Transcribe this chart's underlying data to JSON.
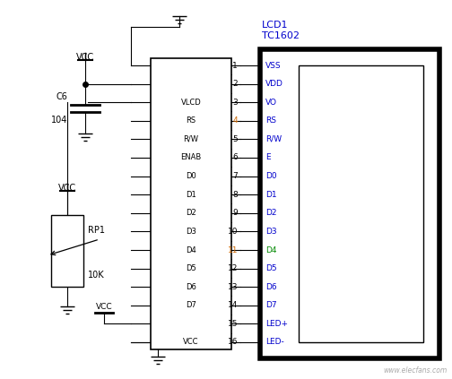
{
  "fig_width": 5.04,
  "fig_height": 4.23,
  "dpi": 100,
  "bg_color": "#ffffff",
  "pin_labels_left": [
    "VSS",
    "VDD",
    "VO",
    "RS",
    "R/W",
    "E",
    "D0",
    "D1",
    "D2",
    "D3",
    "D4",
    "D5",
    "D6",
    "D7",
    "LED+",
    "LED-"
  ],
  "pin_numbers": [
    "1",
    "2",
    "3",
    "4",
    "5",
    "6",
    "7",
    "8",
    "9",
    "10",
    "11",
    "12",
    "13",
    "14",
    "15",
    "16"
  ],
  "signal_labels": [
    "",
    "",
    "VLCD",
    "RS",
    "R/W",
    "ENAB",
    "D0",
    "D1",
    "D2",
    "D3",
    "D4",
    "D5",
    "D6",
    "D7",
    "",
    "VCC"
  ],
  "lcd_title": "LCD1",
  "lcd_subtitle": "TC1602",
  "component_color": "#000000",
  "number_color": "#cc6600",
  "label_color": "#000000",
  "lcd_title_color": "#0000cc",
  "pin_color": "#0000cc",
  "watermark": "www.elecfans.com",
  "D4_color": "#008800"
}
